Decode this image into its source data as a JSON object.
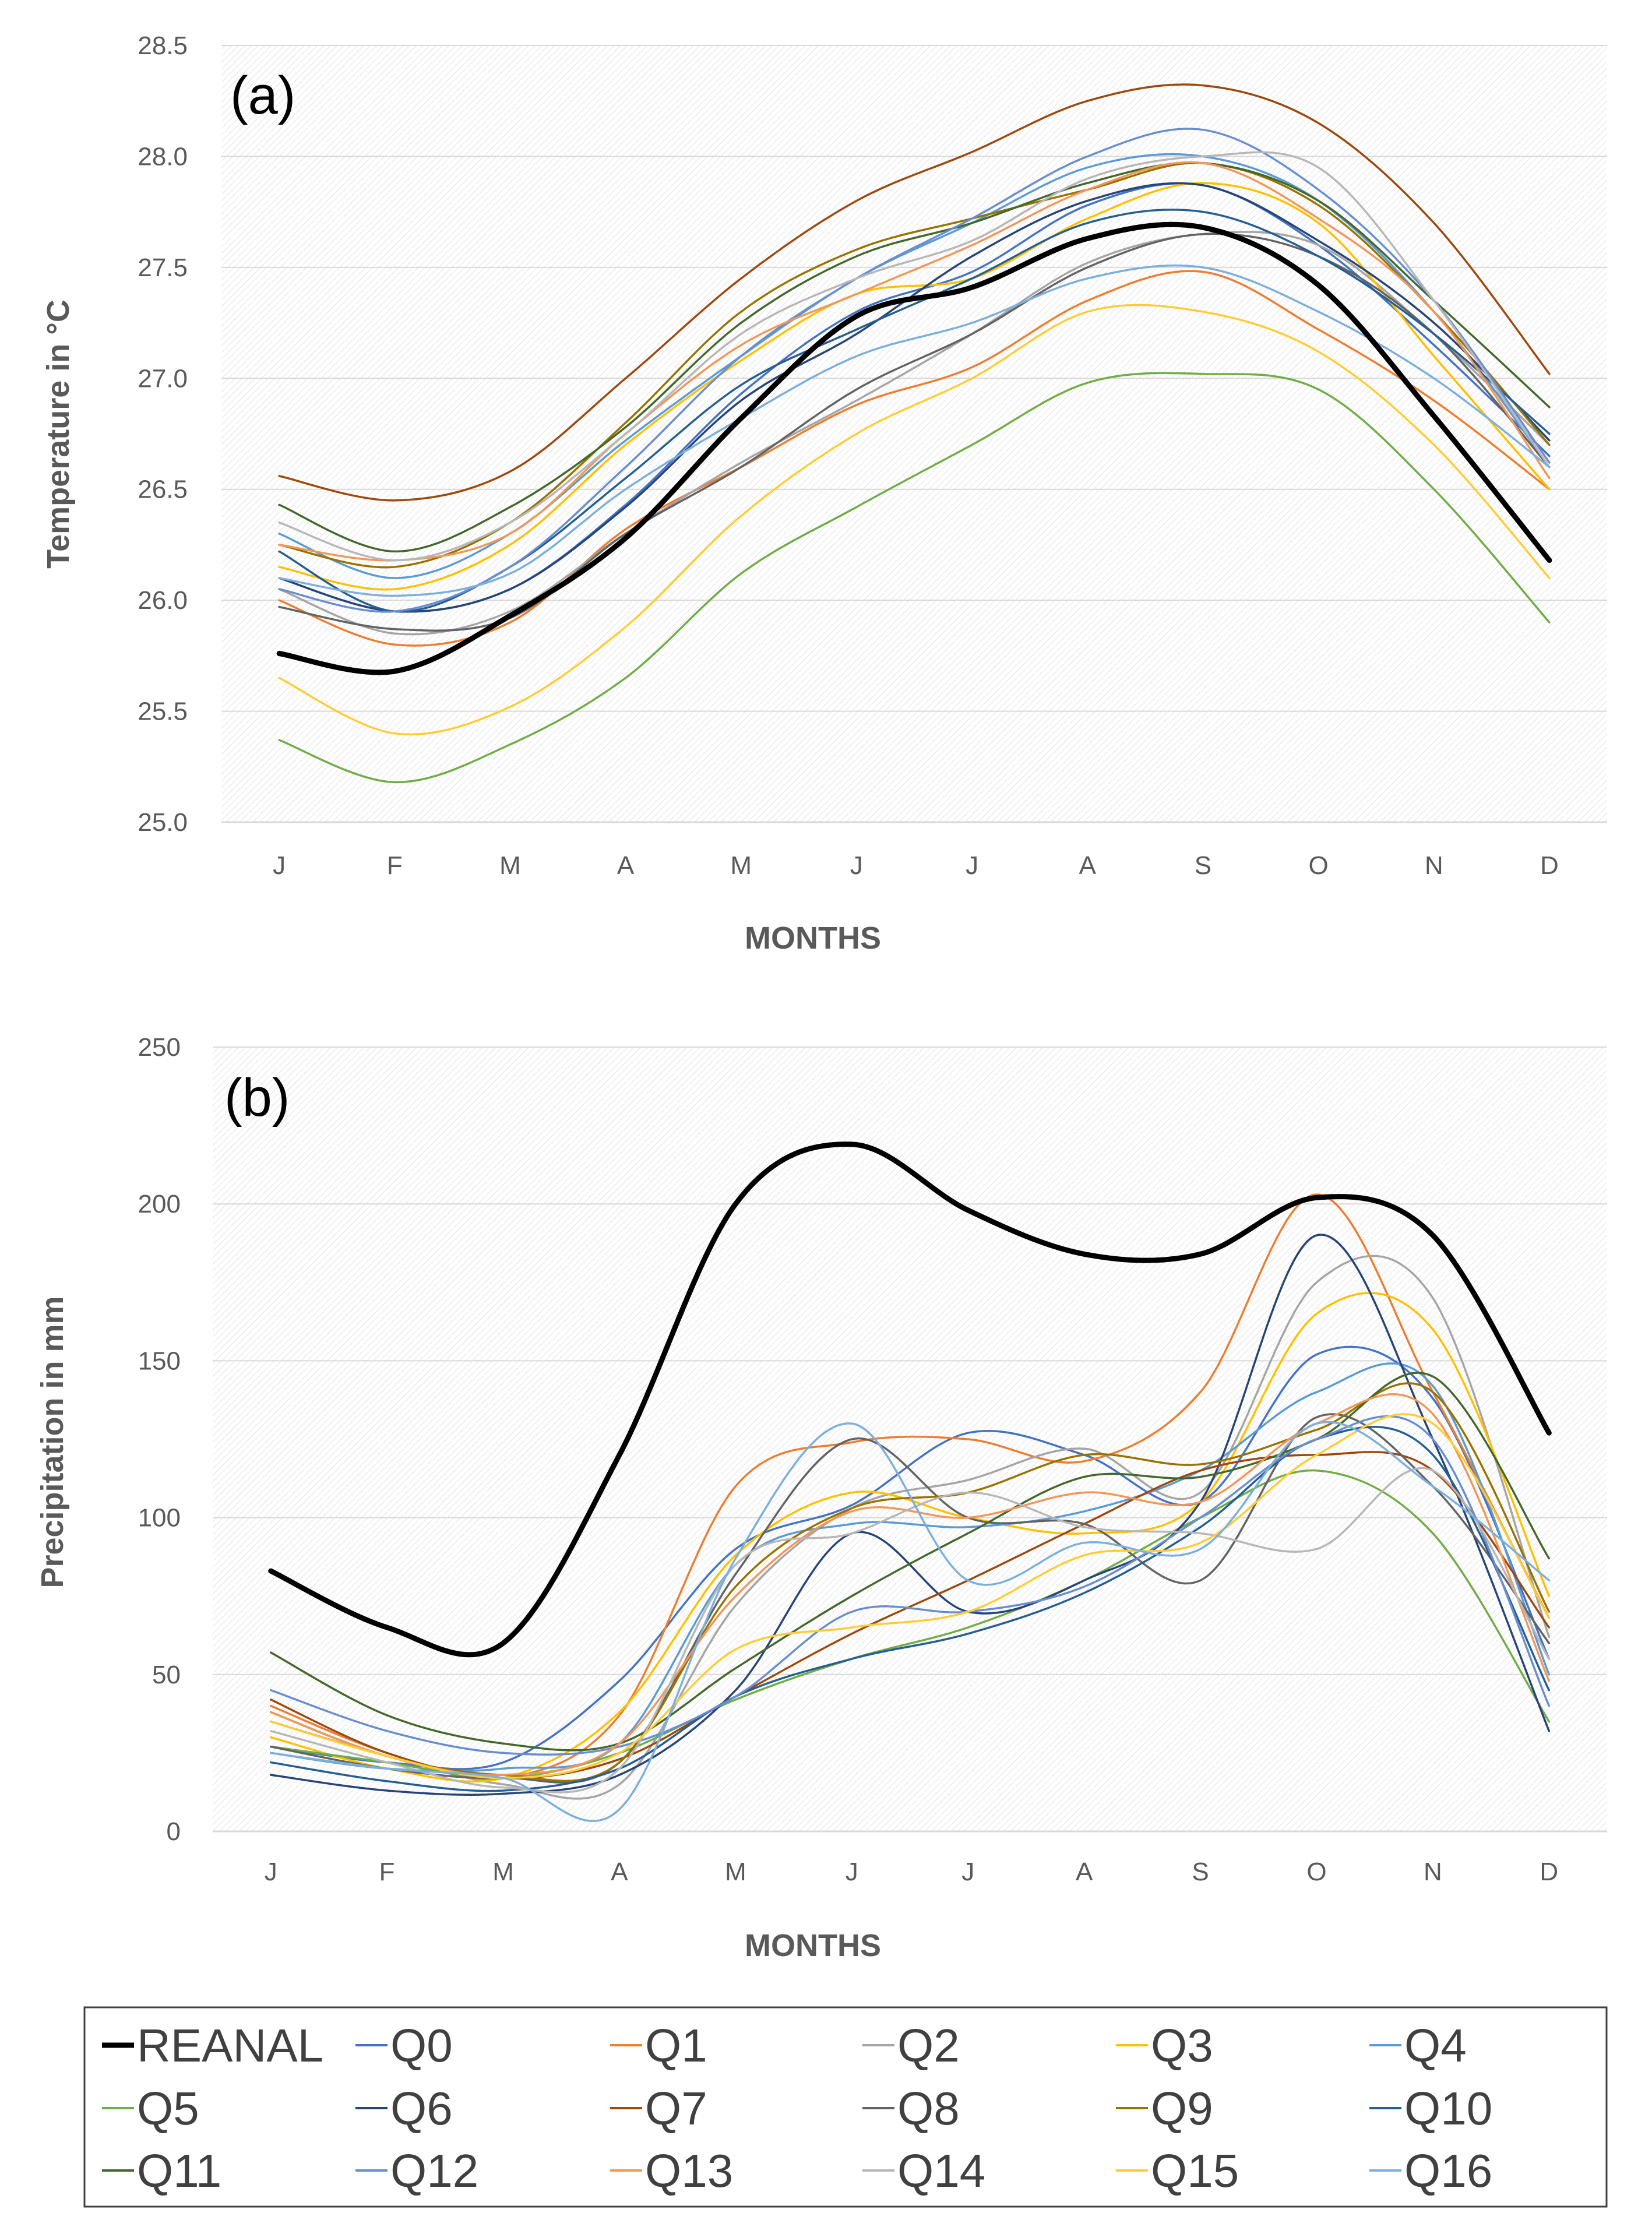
{
  "chart_data": [
    {
      "type": "line",
      "panel_label": "(a)",
      "categories": [
        "J",
        "F",
        "M",
        "A",
        "M",
        "J",
        "J",
        "A",
        "S",
        "O",
        "N",
        "D"
      ],
      "xlabel": "MONTHS",
      "ylabel": "Temperature  in °C",
      "ylim": [
        25.0,
        28.5
      ],
      "yticks": [
        "25.0",
        "25.5",
        "26.0",
        "26.5",
        "27.0",
        "27.5",
        "28.0",
        "28.5"
      ],
      "grid": true,
      "series": [
        {
          "name": "REANAL",
          "color": "#000000",
          "values": [
            25.76,
            25.68,
            25.93,
            26.28,
            26.82,
            27.28,
            27.41,
            27.63,
            27.68,
            27.42,
            26.83,
            26.18
          ]
        },
        {
          "name": "Q0",
          "color": "#4472C4",
          "values": [
            26.1,
            25.95,
            26.05,
            26.43,
            26.93,
            27.3,
            27.48,
            27.78,
            27.87,
            27.6,
            27.15,
            26.65
          ]
        },
        {
          "name": "Q1",
          "color": "#ED7D31",
          "values": [
            26.0,
            25.8,
            25.9,
            26.32,
            26.6,
            26.88,
            27.05,
            27.35,
            27.48,
            27.22,
            26.9,
            26.5
          ]
        },
        {
          "name": "Q2",
          "color": "#A5A5A5",
          "values": [
            26.05,
            25.85,
            25.95,
            26.3,
            26.62,
            26.9,
            27.2,
            27.52,
            27.65,
            27.6,
            27.2,
            26.7
          ]
        },
        {
          "name": "Q3",
          "color": "#FFC000",
          "values": [
            26.15,
            26.05,
            26.25,
            26.7,
            27.08,
            27.38,
            27.45,
            27.72,
            27.88,
            27.7,
            27.1,
            26.5
          ]
        },
        {
          "name": "Q4",
          "color": "#5B9BD5",
          "values": [
            26.3,
            26.1,
            26.3,
            26.72,
            27.1,
            27.45,
            27.7,
            27.95,
            28.0,
            27.8,
            27.3,
            26.6
          ]
        },
        {
          "name": "Q5",
          "color": "#70AD47",
          "values": [
            25.37,
            25.18,
            25.35,
            25.65,
            26.12,
            26.42,
            26.7,
            26.98,
            27.02,
            26.95,
            26.5,
            25.9
          ]
        },
        {
          "name": "Q6",
          "color": "#264478",
          "values": [
            26.1,
            25.95,
            26.05,
            26.42,
            26.9,
            27.2,
            27.55,
            27.8,
            27.87,
            27.62,
            27.25,
            26.72
          ]
        },
        {
          "name": "Q7",
          "color": "#9E480E",
          "values": [
            26.56,
            26.45,
            26.58,
            27.0,
            27.45,
            27.8,
            28.02,
            28.25,
            28.32,
            28.15,
            27.7,
            27.02
          ]
        },
        {
          "name": "Q8",
          "color": "#636363",
          "values": [
            25.97,
            25.87,
            25.92,
            26.3,
            26.6,
            26.95,
            27.2,
            27.5,
            27.65,
            27.55,
            27.2,
            26.6
          ]
        },
        {
          "name": "Q9",
          "color": "#997300",
          "values": [
            26.25,
            26.15,
            26.35,
            26.8,
            27.3,
            27.58,
            27.72,
            27.85,
            27.97,
            27.78,
            27.3,
            26.7
          ]
        },
        {
          "name": "Q10",
          "color": "#255E91",
          "values": [
            26.22,
            25.95,
            26.15,
            26.55,
            26.97,
            27.22,
            27.45,
            27.7,
            27.75,
            27.55,
            27.2,
            26.75
          ]
        },
        {
          "name": "Q11",
          "color": "#43682B",
          "values": [
            26.43,
            26.22,
            26.42,
            26.78,
            27.25,
            27.55,
            27.7,
            27.88,
            27.97,
            27.8,
            27.35,
            26.87
          ]
        },
        {
          "name": "Q12",
          "color": "#698ED0",
          "values": [
            26.05,
            25.95,
            26.15,
            26.6,
            27.1,
            27.45,
            27.72,
            28.0,
            28.12,
            27.85,
            27.35,
            26.62
          ]
        },
        {
          "name": "Q13",
          "color": "#F1975A",
          "values": [
            26.25,
            26.18,
            26.3,
            26.75,
            27.15,
            27.38,
            27.6,
            27.85,
            27.97,
            27.72,
            27.3,
            26.55
          ]
        },
        {
          "name": "Q14",
          "color": "#B7B7B7",
          "values": [
            26.35,
            26.18,
            26.35,
            26.75,
            27.2,
            27.45,
            27.62,
            27.9,
            28.0,
            27.95,
            27.35,
            26.6
          ]
        },
        {
          "name": "Q15",
          "color": "#FFCD33",
          "values": [
            25.65,
            25.4,
            25.52,
            25.88,
            26.38,
            26.75,
            27.0,
            27.3,
            27.3,
            27.12,
            26.7,
            26.1
          ]
        },
        {
          "name": "Q16",
          "color": "#7CAFDD",
          "values": [
            26.1,
            26.02,
            26.12,
            26.5,
            26.82,
            27.1,
            27.25,
            27.45,
            27.5,
            27.3,
            27.0,
            26.6
          ]
        }
      ]
    },
    {
      "type": "line",
      "panel_label": "(b)",
      "categories": [
        "J",
        "F",
        "M",
        "A",
        "M",
        "J",
        "J",
        "A",
        "S",
        "O",
        "N",
        "D"
      ],
      "xlabel": "MONTHS",
      "ylabel": "Precipitation in mm",
      "ylim": [
        0,
        250
      ],
      "yticks": [
        "0",
        "50",
        "100",
        "150",
        "200",
        "250"
      ],
      "grid": true,
      "series": [
        {
          "name": "REANAL",
          "color": "#000000",
          "values": [
            83,
            65,
            60,
            120,
            200,
            219,
            198,
            184,
            184,
            202,
            190,
            127
          ]
        },
        {
          "name": "Q0",
          "color": "#4472C4",
          "values": [
            27,
            22,
            22,
            48,
            90,
            104,
            127,
            120,
            105,
            152,
            138,
            55
          ]
        },
        {
          "name": "Q1",
          "color": "#ED7D31",
          "values": [
            40,
            25,
            17,
            37,
            110,
            124,
            125,
            118,
            140,
            203,
            140,
            68
          ]
        },
        {
          "name": "Q2",
          "color": "#A5A5A5",
          "values": [
            35,
            24,
            15,
            15,
            72,
            103,
            112,
            122,
            108,
            175,
            170,
            62
          ]
        },
        {
          "name": "Q3",
          "color": "#FFC000",
          "values": [
            30,
            20,
            17,
            38,
            88,
            108,
            100,
            95,
            105,
            165,
            160,
            75
          ]
        },
        {
          "name": "Q4",
          "color": "#5B9BD5",
          "values": [
            25,
            20,
            20,
            28,
            85,
            98,
            97,
            102,
            115,
            140,
            142,
            50
          ]
        },
        {
          "name": "Q5",
          "color": "#70AD47",
          "values": [
            27,
            22,
            17,
            25,
            42,
            55,
            65,
            80,
            100,
            115,
            95,
            35
          ]
        },
        {
          "name": "Q6",
          "color": "#264478",
          "values": [
            18,
            13,
            12,
            18,
            45,
            95,
            70,
            80,
            105,
            190,
            125,
            32
          ]
        },
        {
          "name": "Q7",
          "color": "#9E480E",
          "values": [
            42,
            25,
            17,
            23,
            43,
            63,
            80,
            98,
            115,
            120,
            115,
            65
          ]
        },
        {
          "name": "Q8",
          "color": "#636363",
          "values": [
            27,
            20,
            17,
            22,
            82,
            125,
            100,
            98,
            80,
            132,
            110,
            60
          ]
        },
        {
          "name": "Q9",
          "color": "#997300",
          "values": [
            38,
            24,
            18,
            22,
            78,
            103,
            108,
            120,
            117,
            128,
            140,
            70
          ]
        },
        {
          "name": "Q10",
          "color": "#255E91",
          "values": [
            22,
            16,
            13,
            20,
            43,
            55,
            63,
            76,
            97,
            125,
            120,
            45
          ]
        },
        {
          "name": "Q11",
          "color": "#43682B",
          "values": [
            57,
            37,
            28,
            28,
            52,
            75,
            95,
            113,
            113,
            125,
            145,
            87
          ]
        },
        {
          "name": "Q12",
          "color": "#698ED0",
          "values": [
            45,
            32,
            25,
            27,
            43,
            70,
            70,
            78,
            100,
            125,
            125,
            40
          ]
        },
        {
          "name": "Q13",
          "color": "#F1975A",
          "values": [
            38,
            24,
            18,
            28,
            75,
            102,
            100,
            108,
            105,
            130,
            133,
            48
          ]
        },
        {
          "name": "Q14",
          "color": "#B7B7B7",
          "values": [
            32,
            22,
            14,
            20,
            85,
            95,
            108,
            97,
            95,
            90,
            115,
            55
          ]
        },
        {
          "name": "Q15",
          "color": "#FFCD33",
          "values": [
            35,
            24,
            17,
            25,
            58,
            65,
            70,
            88,
            92,
            120,
            130,
            68
          ]
        },
        {
          "name": "Q16",
          "color": "#7CAFDD",
          "values": [
            25,
            20,
            17,
            7,
            87,
            130,
            80,
            92,
            90,
            130,
            110,
            80
          ]
        }
      ]
    }
  ]
}
